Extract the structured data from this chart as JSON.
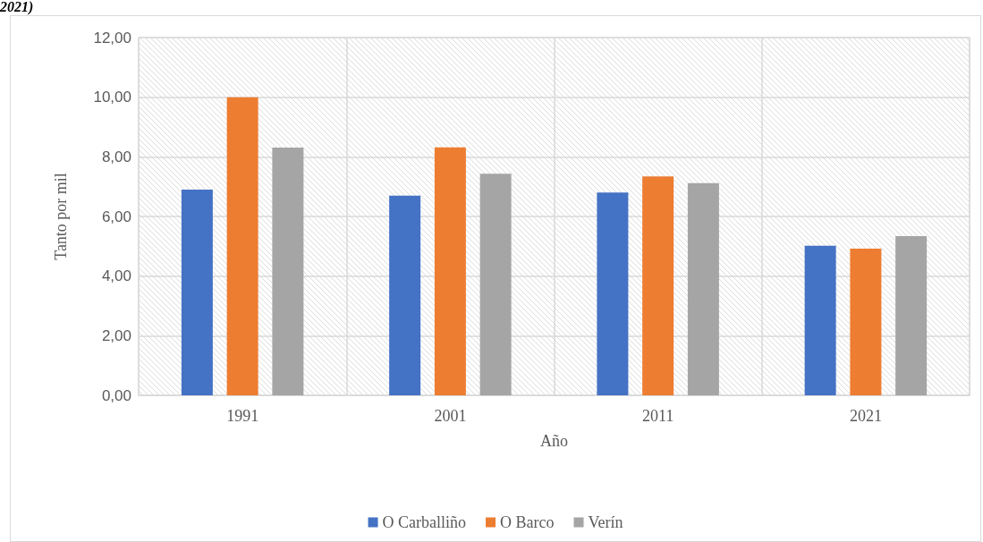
{
  "chart_data": {
    "type": "bar",
    "title": "2021)",
    "xlabel": "Año",
    "ylabel": "Tanto por mil",
    "categories": [
      "1991",
      "2001",
      "2011",
      "2021"
    ],
    "series": [
      {
        "name": "O Carballiño",
        "color": "#4472c4",
        "values": [
          6.9,
          6.7,
          6.8,
          5.02
        ]
      },
      {
        "name": "O Barco",
        "color": "#ed7d31",
        "values": [
          10.0,
          8.32,
          7.34,
          4.92
        ]
      },
      {
        "name": "Verín",
        "color": "#a5a5a5",
        "values": [
          8.31,
          7.43,
          7.12,
          5.34
        ]
      }
    ],
    "ylim": [
      0,
      12
    ],
    "yticks": [
      {
        "value": 0,
        "label": "0,00"
      },
      {
        "value": 2,
        "label": "2,00"
      },
      {
        "value": 4,
        "label": "4,00"
      },
      {
        "value": 6,
        "label": "6,00"
      },
      {
        "value": 8,
        "label": "8,00"
      },
      {
        "value": 10,
        "label": "10,00"
      },
      {
        "value": 12,
        "label": "12,00"
      }
    ],
    "grid": true,
    "legend": "bottom"
  }
}
